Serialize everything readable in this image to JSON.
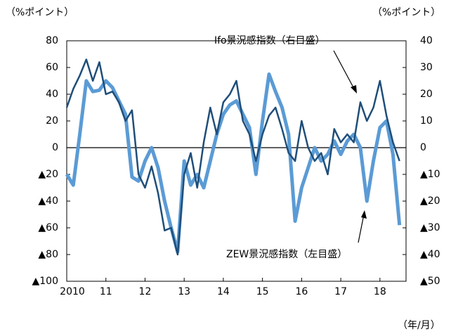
{
  "chart_data": {
    "type": "line",
    "y_label": "（%ポイント）",
    "y2_label": "（%ポイント）",
    "x_label": "（年/月）",
    "annotations": [
      "Ifo景況感指数（右目盛）",
      "ZEW景況感指数（左目盛）"
    ],
    "x": [
      2010,
      2010.167,
      2010.333,
      2010.5,
      2010.667,
      2010.833,
      2011,
      2011.167,
      2011.333,
      2011.5,
      2011.667,
      2011.833,
      2012,
      2012.167,
      2012.333,
      2012.5,
      2012.667,
      2012.833,
      2013,
      2013.167,
      2013.333,
      2013.5,
      2013.667,
      2013.833,
      2014,
      2014.167,
      2014.333,
      2014.5,
      2014.667,
      2014.833,
      2015,
      2015.167,
      2015.333,
      2015.5,
      2015.667,
      2015.833,
      2016,
      2016.167,
      2016.333,
      2016.5,
      2016.667,
      2016.833,
      2017,
      2017.167,
      2017.333,
      2017.5,
      2017.667,
      2017.833,
      2018,
      2018.167,
      2018.333,
      2018.5
    ],
    "series": [
      {
        "name": "ZEW景況感指数（左目盛）",
        "color": "#5b9bd5",
        "axis": "y",
        "values": [
          -20,
          -28,
          10,
          50,
          42,
          43,
          50,
          45,
          35,
          25,
          -22,
          -25,
          -10,
          0,
          -15,
          -40,
          -60,
          -78,
          -10,
          -28,
          -20,
          -30,
          -10,
          10,
          25,
          32,
          35,
          25,
          15,
          -20,
          20,
          55,
          42,
          30,
          10,
          -55,
          -30,
          -15,
          0,
          -10,
          -5,
          5,
          -5,
          5,
          10,
          0,
          -40,
          -10,
          15,
          20,
          -5,
          -58
        ]
      },
      {
        "name": "Ifo景況感指数（右目盛）",
        "color": "#1f4e79",
        "axis": "y2",
        "values": [
          15,
          22,
          27,
          33,
          25,
          32,
          20,
          21,
          17,
          10,
          14,
          -10,
          -15,
          -7,
          -17,
          -31,
          -30,
          -40,
          -10,
          -2,
          -15,
          2,
          15,
          5,
          17,
          20,
          25,
          10,
          5,
          -5,
          5,
          12,
          15,
          7,
          -2,
          -5,
          10,
          0,
          -5,
          -2,
          -10,
          7,
          2,
          5,
          2,
          17,
          10,
          15,
          25,
          12,
          2,
          -5
        ]
      }
    ],
    "xlim": [
      2010,
      2018.667
    ],
    "xticks": [
      2010,
      {
        "value": 2011,
        "label": "11"
      },
      {
        "value": 2012,
        "label": "12"
      },
      {
        "value": 2013,
        "label": "13"
      },
      {
        "value": 2014,
        "label": "14"
      },
      {
        "value": 2015,
        "label": "15"
      },
      {
        "value": 2016,
        "label": "16"
      },
      {
        "value": 2017,
        "label": "17"
      },
      {
        "value": 2018,
        "label": "18"
      }
    ],
    "ylim": [
      -100,
      80
    ],
    "yticks": [
      80,
      60,
      40,
      20,
      0,
      {
        "value": -20,
        "label": "▲20"
      },
      {
        "value": -40,
        "label": "▲40"
      },
      {
        "value": -60,
        "label": "▲60"
      },
      {
        "value": -80,
        "label": "▲80"
      },
      {
        "value": -100,
        "label": "▲100"
      }
    ],
    "y2lim": [
      -50,
      40
    ],
    "y2ticks": [
      40,
      30,
      20,
      10,
      0,
      {
        "value": -10,
        "label": "▲10"
      },
      {
        "value": -20,
        "label": "▲20"
      },
      {
        "value": -30,
        "label": "▲30"
      },
      {
        "value": -40,
        "label": "▲40"
      },
      {
        "value": -50,
        "label": "▲50"
      }
    ],
    "grid": false
  }
}
